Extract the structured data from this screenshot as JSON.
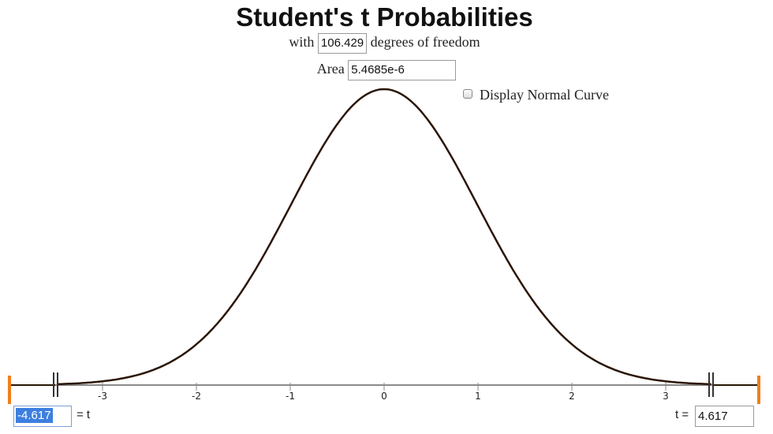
{
  "title": "Student's t Probabilities",
  "df_row": {
    "prefix": "with",
    "df_value": "106.429",
    "suffix": "degrees of freedom"
  },
  "area_row": {
    "label": "Area",
    "value": "5.4685e-6"
  },
  "normal_curve": {
    "label": "Display Normal Curve",
    "checked": false
  },
  "left_input": {
    "value": "-4.617",
    "suffix": "= t"
  },
  "right_input": {
    "prefix": "t =",
    "value": "4.617"
  },
  "colors": {
    "curve": "#2a1606",
    "axis": "#8a8a8a",
    "handle": "#f07f1a",
    "selection": "#3d7fe0"
  },
  "chart_data": {
    "type": "line",
    "distribution": "student-t",
    "degrees_of_freedom": 106.429,
    "xlim": [
      -4.1,
      4.1
    ],
    "ylim": [
      0,
      0.399
    ],
    "tick_labels": [
      "-3",
      "-2",
      "-1",
      "0",
      "1",
      "2",
      "3"
    ],
    "tick_values": [
      -3,
      -2,
      -1,
      0,
      1,
      2,
      3
    ],
    "critical_values": [
      -4.617,
      4.617
    ],
    "tail_area": "5.4685e-6"
  }
}
